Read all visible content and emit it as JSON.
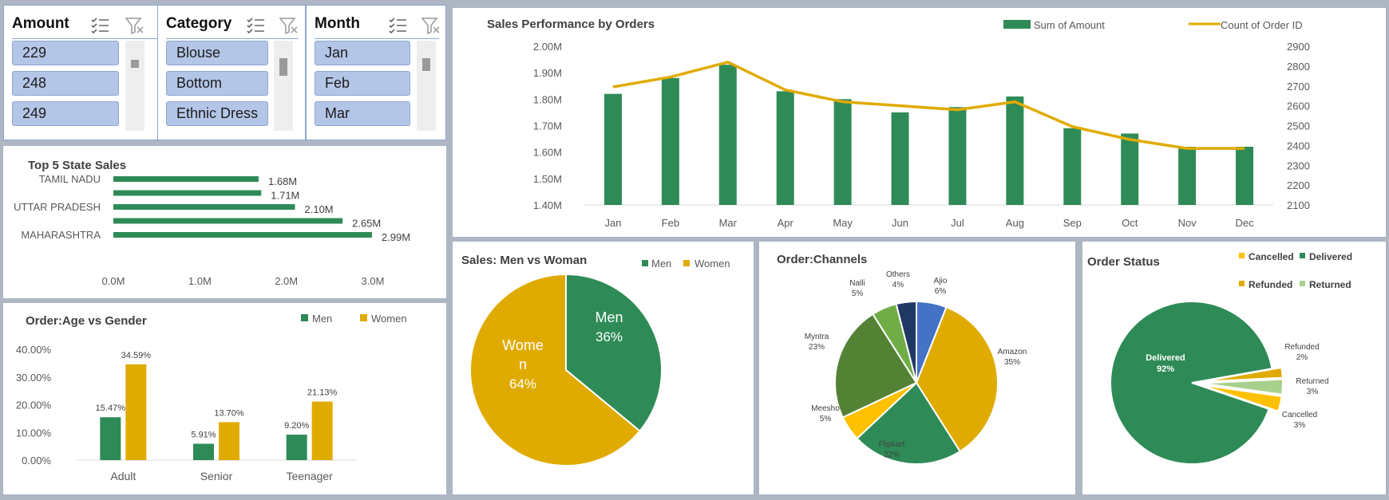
{
  "slicers": [
    {
      "title": "Amount",
      "items": [
        "229",
        "248",
        "249"
      ]
    },
    {
      "title": "Category",
      "items": [
        "Blouse",
        "Bottom",
        "Ethnic Dress"
      ]
    },
    {
      "title": "Month",
      "items": [
        "Jan",
        "Feb",
        "Mar"
      ]
    }
  ],
  "icons": {
    "multi_select": "multi-select-icon",
    "clear_filter": "clear-filter-icon"
  },
  "colors": {
    "green": "#2e8b57",
    "gold": "#e0ab00",
    "light_green": "#a9d18e",
    "olive": "#548235",
    "blue": "#4472c4",
    "navy": "#203864",
    "amber": "#ffc000"
  },
  "chart_data": [
    {
      "type": "bar+line",
      "title": "Sales Performance by Orders",
      "categories": [
        "Jan",
        "Feb",
        "Mar",
        "Apr",
        "May",
        "Jun",
        "Jul",
        "Aug",
        "Sep",
        "Oct",
        "Nov",
        "Dec"
      ],
      "series": [
        {
          "name": "Sum of Amount",
          "type": "bar",
          "axis": "left",
          "values": [
            1.82,
            1.88,
            1.93,
            1.83,
            1.8,
            1.75,
            1.77,
            1.81,
            1.69,
            1.67,
            1.62,
            1.62
          ]
        },
        {
          "name": "Count of Order ID",
          "type": "line",
          "axis": "right",
          "values": [
            2695,
            2745,
            2820,
            2680,
            2620,
            2600,
            2580,
            2620,
            2495,
            2430,
            2385,
            2385
          ]
        }
      ],
      "ylim_left": [
        1.4,
        2.0
      ],
      "yticks_left": [
        "1.40M",
        "1.50M",
        "1.60M",
        "1.70M",
        "1.80M",
        "1.90M",
        "2.00M"
      ],
      "ylim_right": [
        2100,
        2900
      ],
      "yticks_right": [
        "2100",
        "2200",
        "2300",
        "2400",
        "2500",
        "2600",
        "2700",
        "2800",
        "2900"
      ],
      "legend": "top-right"
    },
    {
      "type": "bar",
      "orientation": "horizontal",
      "title": "Top 5 State Sales",
      "categories": [
        "TAMIL NADU",
        "",
        "UTTAR PRADESH",
        "",
        "MAHARASHTRA"
      ],
      "values": [
        1.68,
        1.71,
        2.1,
        2.65,
        2.99
      ],
      "data_labels": [
        "1.68M",
        "1.71M",
        "2.10M",
        "2.65M",
        "2.99M"
      ],
      "xlim": [
        0,
        3.0
      ],
      "xticks": [
        "0.0M",
        "1.0M",
        "2.0M",
        "3.0M"
      ]
    },
    {
      "type": "bar",
      "title": "Order:Age vs Gender",
      "categories": [
        "Adult",
        "Senior",
        "Teenager"
      ],
      "series": [
        {
          "name": "Men",
          "values": [
            15.47,
            5.91,
            9.2
          ],
          "labels": [
            "15.47%",
            "5.91%",
            "9.20%"
          ]
        },
        {
          "name": "Women",
          "values": [
            34.59,
            13.7,
            21.13
          ],
          "labels": [
            "34.59%",
            "13.70%",
            "21.13%"
          ]
        }
      ],
      "ylim": [
        0,
        40
      ],
      "yticks": [
        "0.00%",
        "10.00%",
        "20.00%",
        "30.00%",
        "40.00%"
      ],
      "legend": "top-right"
    },
    {
      "type": "pie",
      "title": "Sales: Men vs Woman",
      "slices": [
        {
          "label": "Men",
          "pct": "36%",
          "value": 36,
          "color": "#2e8b57"
        },
        {
          "label": "Women",
          "pct": "64%",
          "value": 64,
          "color": "#e0ab00"
        }
      ],
      "legend": [
        "Men",
        "Women"
      ]
    },
    {
      "type": "pie",
      "title": "Order:Channels",
      "slices": [
        {
          "label": "Ajio",
          "pct": "6%",
          "value": 6,
          "color": "#4472c4"
        },
        {
          "label": "Amazon",
          "pct": "35%",
          "value": 35,
          "color": "#e0ab00"
        },
        {
          "label": "Flipkart",
          "pct": "22%",
          "value": 22,
          "color": "#2e8b57"
        },
        {
          "label": "Meesho",
          "pct": "5%",
          "value": 5,
          "color": "#ffc000"
        },
        {
          "label": "Myntra",
          "pct": "23%",
          "value": 23,
          "color": "#548235"
        },
        {
          "label": "Nalli",
          "pct": "5%",
          "value": 5,
          "color": "#70ad47"
        },
        {
          "label": "Others",
          "pct": "4%",
          "value": 4,
          "color": "#203864"
        }
      ]
    },
    {
      "type": "pie",
      "title": "Order Status",
      "slices": [
        {
          "label": "Delivered",
          "pct": "92%",
          "value": 92,
          "color": "#2e8b57"
        },
        {
          "label": "Refunded",
          "pct": "2%",
          "value": 2,
          "color": "#e0ab00"
        },
        {
          "label": "Returned",
          "pct": "3%",
          "value": 3,
          "color": "#a9d18e"
        },
        {
          "label": "Cancelled",
          "pct": "3%",
          "value": 3,
          "color": "#ffc000"
        }
      ],
      "legend": [
        "Cancelled",
        "Delivered",
        "Refunded",
        "Returned"
      ],
      "legend_colors": [
        "#ffc000",
        "#2e8b57",
        "#e0ab00",
        "#a9d18e"
      ]
    }
  ]
}
